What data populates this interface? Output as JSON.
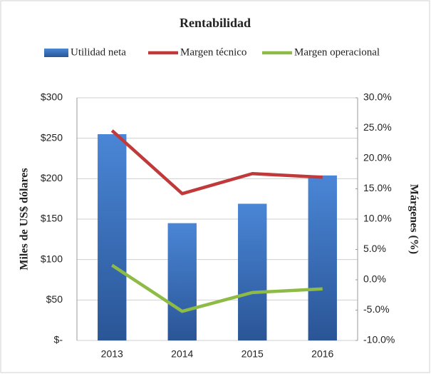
{
  "chart_data": {
    "type": "bar_line",
    "title": "Rentabilidad",
    "categories": [
      "2013",
      "2014",
      "2015",
      "2016"
    ],
    "series": [
      {
        "name": "Utilidad neta",
        "type": "bar",
        "color": "#3a73c2",
        "values": [
          255,
          145,
          169,
          204
        ]
      },
      {
        "name": "Margen técnico",
        "type": "line",
        "axis": "y2",
        "color": "#c0393b",
        "values": [
          24.6,
          14.2,
          17.5,
          16.9
        ]
      },
      {
        "name": "Margen operacional",
        "type": "line",
        "axis": "y2",
        "color": "#8dbb45",
        "values": [
          2.4,
          -5.2,
          -2.1,
          -1.5
        ]
      }
    ],
    "ylabel": "Miles de US$ dólares",
    "y2label": "Márgenes (%)",
    "ylim": [
      0,
      300
    ],
    "yticks": [
      {
        "value": 0,
        "label": "$-"
      },
      {
        "value": 50,
        "label": "$50"
      },
      {
        "value": 100,
        "label": "$100"
      },
      {
        "value": 150,
        "label": "$150"
      },
      {
        "value": 200,
        "label": "$200"
      },
      {
        "value": 250,
        "label": "$250"
      },
      {
        "value": 300,
        "label": "$300"
      }
    ],
    "y2lim": [
      -10,
      30
    ],
    "y2ticks": [
      {
        "value": -10,
        "label": "-10.0%"
      },
      {
        "value": -5,
        "label": "-5.0%"
      },
      {
        "value": 0,
        "label": "0.0%"
      },
      {
        "value": 5,
        "label": "5.0%"
      },
      {
        "value": 10,
        "label": "10.0%"
      },
      {
        "value": 15,
        "label": "15.0%"
      },
      {
        "value": 20,
        "label": "20.0%"
      },
      {
        "value": 25,
        "label": "25.0%"
      },
      {
        "value": 30,
        "label": "30.0%"
      }
    ],
    "grid": true,
    "legend": "top"
  }
}
